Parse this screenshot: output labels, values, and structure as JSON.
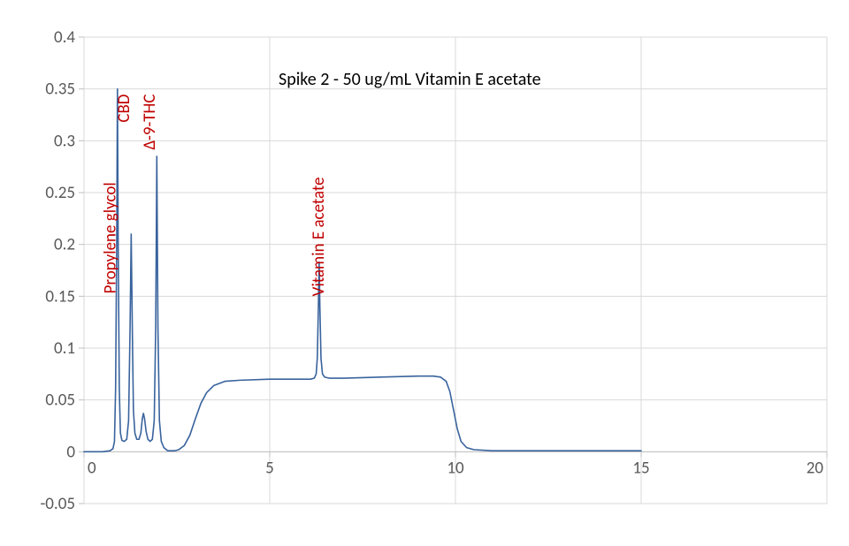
{
  "chart": {
    "type": "line",
    "title": "Spike 2 - 50 ug/mL Vitamin E acetate",
    "title_fontsize": 20,
    "title_color": "#000000",
    "plot_bg": "#ffffff",
    "border_color": "#d9d9d9",
    "grid_color": "#d9d9d9",
    "axis_line_color": "#bfbfbf",
    "tick_label_color": "#595959",
    "tick_label_fontsize": 19,
    "line_color": "#39639d",
    "line_width": 1.6,
    "xlim": [
      0,
      20
    ],
    "ylim": [
      -0.05,
      0.4
    ],
    "xticks": [
      0,
      5,
      10,
      15,
      20
    ],
    "yticks": [
      -0.05,
      0,
      0.05,
      0.1,
      0.15,
      0.2,
      0.25,
      0.3,
      0.35,
      0.4
    ],
    "peak_labels": [
      {
        "text": "Propylene glycol",
        "x": 0.85,
        "y_top": 0.26,
        "color": "#c00000"
      },
      {
        "text": "CBD",
        "x": 1.22,
        "y_top": 0.345,
        "color": "#c00000"
      },
      {
        "text": "Δ-9-THC",
        "x": 1.9,
        "y_top": 0.345,
        "color": "#c00000"
      },
      {
        "text": "Vitamin E acetate",
        "x": 6.45,
        "y_top": 0.265,
        "color": "#c00000"
      }
    ],
    "series": [
      {
        "x": 0.0,
        "y": 0.0
      },
      {
        "x": 0.5,
        "y": 0.0
      },
      {
        "x": 0.7,
        "y": 0.001
      },
      {
        "x": 0.78,
        "y": 0.003
      },
      {
        "x": 0.82,
        "y": 0.01
      },
      {
        "x": 0.85,
        "y": 0.06
      },
      {
        "x": 0.88,
        "y": 0.2
      },
      {
        "x": 0.9,
        "y": 0.35
      },
      {
        "x": 0.92,
        "y": 0.2
      },
      {
        "x": 0.95,
        "y": 0.06
      },
      {
        "x": 0.98,
        "y": 0.018
      },
      {
        "x": 1.02,
        "y": 0.011
      },
      {
        "x": 1.08,
        "y": 0.01
      },
      {
        "x": 1.15,
        "y": 0.012
      },
      {
        "x": 1.2,
        "y": 0.03
      },
      {
        "x": 1.24,
        "y": 0.12
      },
      {
        "x": 1.27,
        "y": 0.21
      },
      {
        "x": 1.3,
        "y": 0.12
      },
      {
        "x": 1.33,
        "y": 0.04
      },
      {
        "x": 1.37,
        "y": 0.018
      },
      {
        "x": 1.42,
        "y": 0.012
      },
      {
        "x": 1.48,
        "y": 0.012
      },
      {
        "x": 1.53,
        "y": 0.018
      },
      {
        "x": 1.57,
        "y": 0.032
      },
      {
        "x": 1.6,
        "y": 0.037
      },
      {
        "x": 1.63,
        "y": 0.032
      },
      {
        "x": 1.67,
        "y": 0.02
      },
      {
        "x": 1.72,
        "y": 0.012
      },
      {
        "x": 1.78,
        "y": 0.01
      },
      {
        "x": 1.84,
        "y": 0.012
      },
      {
        "x": 1.89,
        "y": 0.03
      },
      {
        "x": 1.93,
        "y": 0.12
      },
      {
        "x": 1.96,
        "y": 0.285
      },
      {
        "x": 1.99,
        "y": 0.12
      },
      {
        "x": 2.03,
        "y": 0.03
      },
      {
        "x": 2.08,
        "y": 0.01
      },
      {
        "x": 2.15,
        "y": 0.004
      },
      {
        "x": 2.25,
        "y": 0.001
      },
      {
        "x": 2.35,
        "y": 0.001
      },
      {
        "x": 2.45,
        "y": 0.001
      },
      {
        "x": 2.55,
        "y": 0.002
      },
      {
        "x": 2.7,
        "y": 0.006
      },
      {
        "x": 2.85,
        "y": 0.016
      },
      {
        "x": 3.0,
        "y": 0.032
      },
      {
        "x": 3.15,
        "y": 0.047
      },
      {
        "x": 3.3,
        "y": 0.057
      },
      {
        "x": 3.5,
        "y": 0.064
      },
      {
        "x": 3.8,
        "y": 0.068
      },
      {
        "x": 4.2,
        "y": 0.069
      },
      {
        "x": 5.0,
        "y": 0.07
      },
      {
        "x": 5.8,
        "y": 0.07
      },
      {
        "x": 6.1,
        "y": 0.07
      },
      {
        "x": 6.2,
        "y": 0.071
      },
      {
        "x": 6.25,
        "y": 0.075
      },
      {
        "x": 6.28,
        "y": 0.09
      },
      {
        "x": 6.31,
        "y": 0.14
      },
      {
        "x": 6.33,
        "y": 0.183
      },
      {
        "x": 6.35,
        "y": 0.14
      },
      {
        "x": 6.38,
        "y": 0.09
      },
      {
        "x": 6.42,
        "y": 0.075
      },
      {
        "x": 6.48,
        "y": 0.072
      },
      {
        "x": 6.6,
        "y": 0.071
      },
      {
        "x": 7.0,
        "y": 0.071
      },
      {
        "x": 8.0,
        "y": 0.072
      },
      {
        "x": 9.0,
        "y": 0.073
      },
      {
        "x": 9.4,
        "y": 0.073
      },
      {
        "x": 9.6,
        "y": 0.072
      },
      {
        "x": 9.75,
        "y": 0.068
      },
      {
        "x": 9.85,
        "y": 0.058
      },
      {
        "x": 9.95,
        "y": 0.04
      },
      {
        "x": 10.05,
        "y": 0.022
      },
      {
        "x": 10.15,
        "y": 0.01
      },
      {
        "x": 10.3,
        "y": 0.004
      },
      {
        "x": 10.5,
        "y": 0.002
      },
      {
        "x": 11.0,
        "y": 0.001
      },
      {
        "x": 12.0,
        "y": 0.001
      },
      {
        "x": 13.0,
        "y": 0.001
      },
      {
        "x": 14.0,
        "y": 0.001
      },
      {
        "x": 15.0,
        "y": 0.001
      }
    ]
  }
}
